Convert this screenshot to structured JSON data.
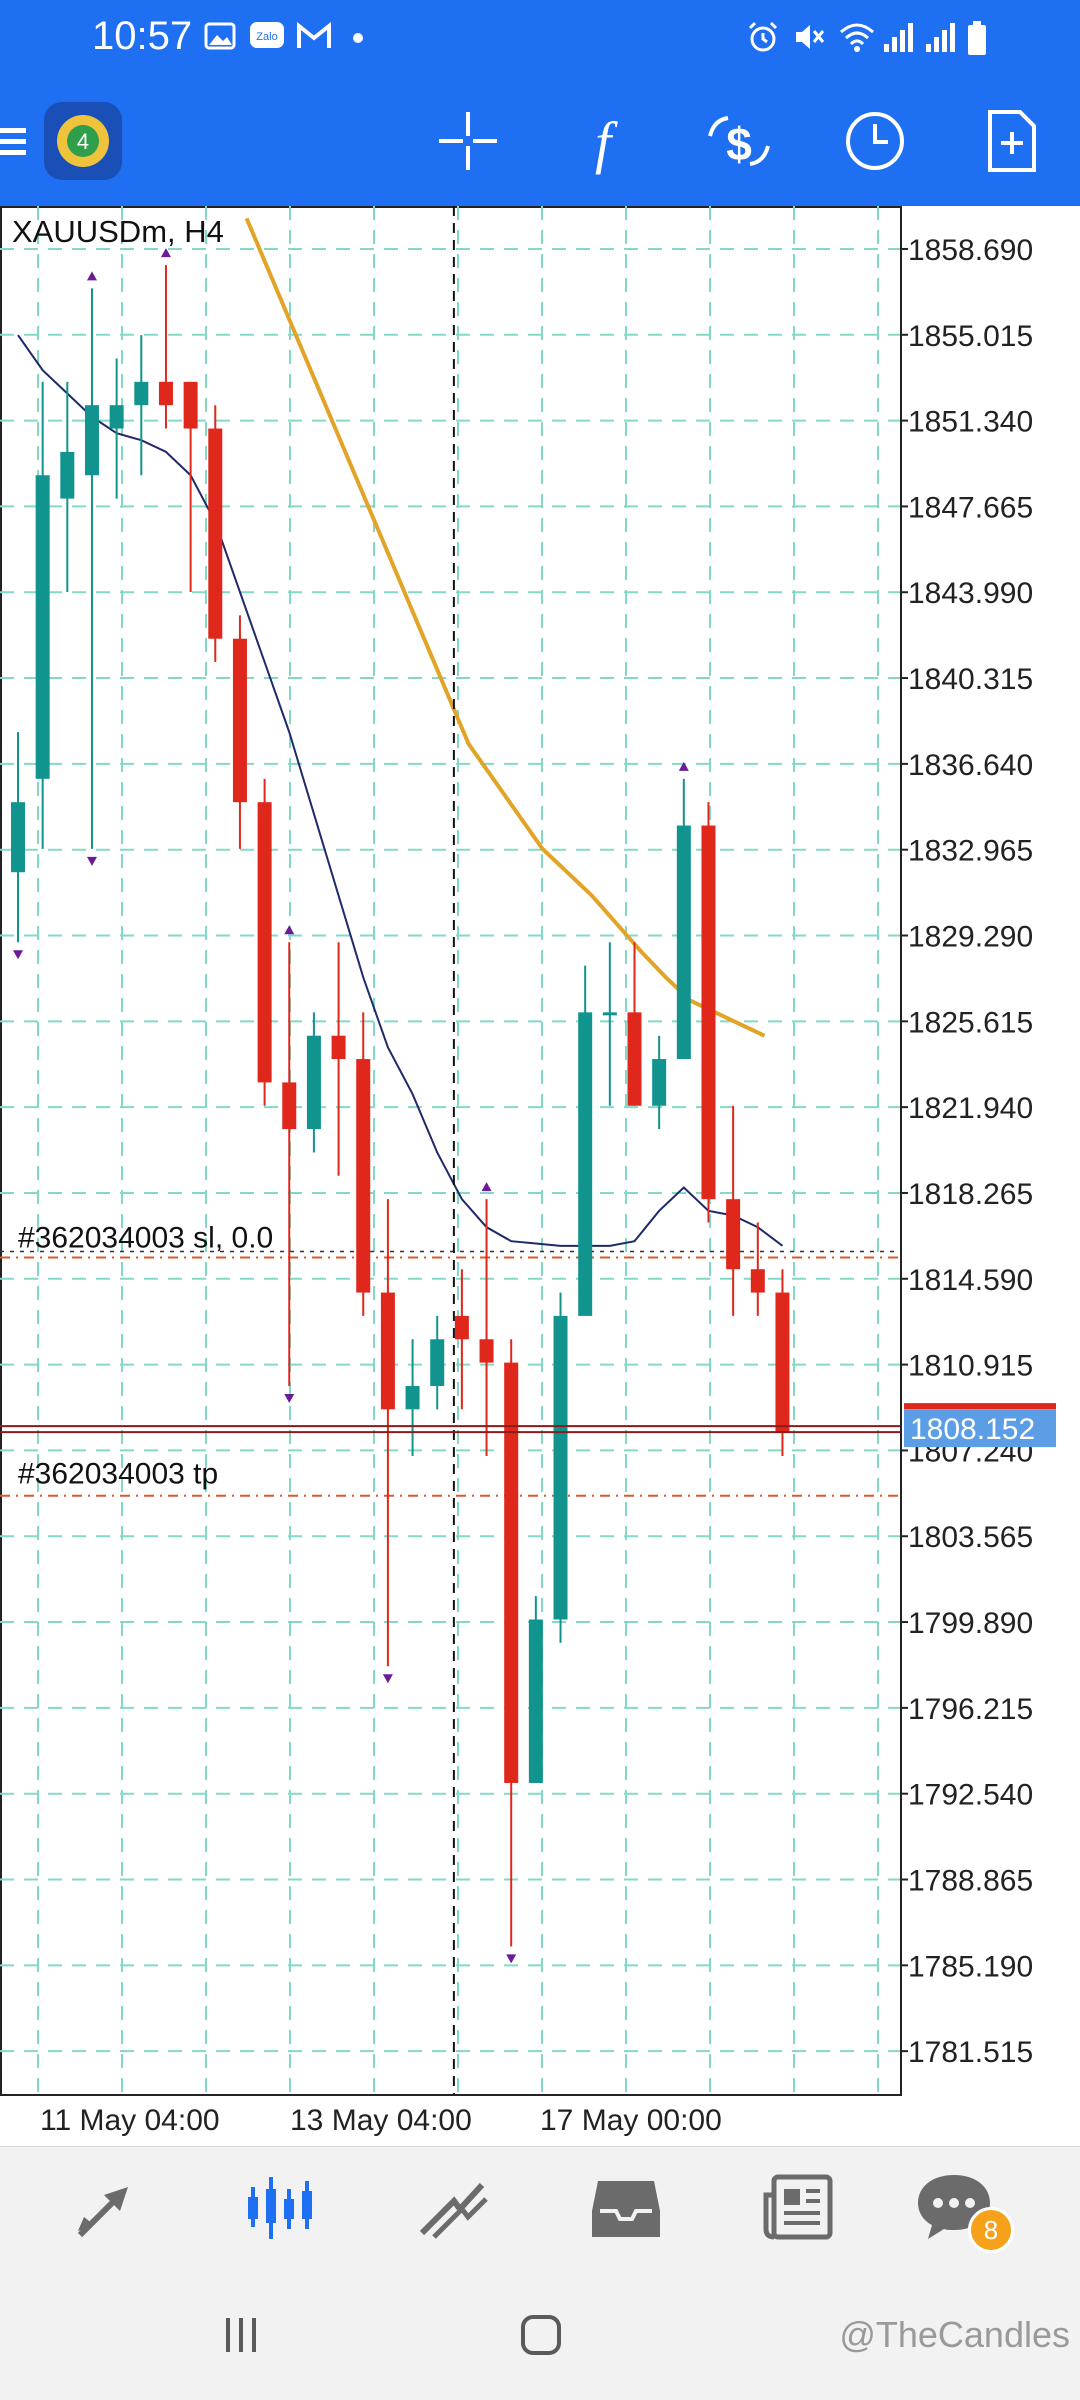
{
  "status_bar": {
    "time": "10:57",
    "left_icons": [
      "gallery-icon",
      "zalo-icon",
      "gmail-icon",
      "dot-icon"
    ],
    "right_icons": [
      "alarm-icon",
      "mute-icon",
      "wifi-icon",
      "signal-icon",
      "signal2-icon",
      "battery-icon"
    ]
  },
  "toolbar": {
    "app": "MetaTrader 4",
    "icons": [
      "menu-icon",
      "app-logo-icon",
      "crosshair-icon",
      "indicators-icon",
      "symbols-icon",
      "timeframe-clock-icon",
      "new-order-icon"
    ]
  },
  "chart_data": {
    "type": "candlestick",
    "title": "XAUUSDm, H4",
    "current_price": "1808.152",
    "yticks": [
      "1858.690",
      "1855.015",
      "1851.340",
      "1847.665",
      "1843.990",
      "1840.315",
      "1836.640",
      "1832.965",
      "1829.290",
      "1825.615",
      "1821.940",
      "1818.265",
      "1814.590",
      "1810.915",
      "1807.240",
      "1803.565",
      "1799.890",
      "1796.215",
      "1792.540",
      "1788.865",
      "1785.190",
      "1781.515"
    ],
    "xticks": [
      "11 May 04:00",
      "13 May 04:00",
      "17 May 00:00"
    ],
    "ylim": [
      1779.68,
      1860.53
    ],
    "sl_label": "#362034003 sl, 0.0",
    "sl_price": 1815.5,
    "tp_label": "#362034003 tp",
    "tp_price": 1805.3,
    "candles": [
      {
        "o": 1832.0,
        "h": 1838.0,
        "l": 1829.0,
        "c": 1835.0
      },
      {
        "o": 1836.0,
        "h": 1853.0,
        "l": 1833.0,
        "c": 1849.0
      },
      {
        "o": 1848.0,
        "h": 1853.0,
        "l": 1844.0,
        "c": 1850.0
      },
      {
        "o": 1849.0,
        "h": 1857.0,
        "l": 1833.0,
        "c": 1852.0
      },
      {
        "o": 1851.0,
        "h": 1854.0,
        "l": 1848.0,
        "c": 1852.0
      },
      {
        "o": 1852.0,
        "h": 1855.0,
        "l": 1849.0,
        "c": 1853.0
      },
      {
        "o": 1853.0,
        "h": 1858.0,
        "l": 1851.0,
        "c": 1852.0
      },
      {
        "o": 1853.0,
        "h": 1853.0,
        "l": 1844.0,
        "c": 1851.0
      },
      {
        "o": 1851.0,
        "h": 1852.0,
        "l": 1841.0,
        "c": 1842.0
      },
      {
        "o": 1842.0,
        "h": 1843.0,
        "l": 1833.0,
        "c": 1835.0
      },
      {
        "o": 1835.0,
        "h": 1836.0,
        "l": 1822.0,
        "c": 1823.0
      },
      {
        "o": 1823.0,
        "h": 1829.0,
        "l": 1810.0,
        "c": 1821.0
      },
      {
        "o": 1821.0,
        "h": 1826.0,
        "l": 1820.0,
        "c": 1825.0
      },
      {
        "o": 1825.0,
        "h": 1829.0,
        "l": 1819.0,
        "c": 1824.0
      },
      {
        "o": 1824.0,
        "h": 1826.0,
        "l": 1813.0,
        "c": 1814.0
      },
      {
        "o": 1814.0,
        "h": 1818.0,
        "l": 1798.0,
        "c": 1809.0
      },
      {
        "o": 1809.0,
        "h": 1812.0,
        "l": 1807.0,
        "c": 1810.0
      },
      {
        "o": 1810.0,
        "h": 1813.0,
        "l": 1809.0,
        "c": 1812.0
      },
      {
        "o": 1813.0,
        "h": 1815.0,
        "l": 1809.0,
        "c": 1812.0
      },
      {
        "o": 1812.0,
        "h": 1818.0,
        "l": 1807.0,
        "c": 1811.0
      },
      {
        "o": 1811.0,
        "h": 1812.0,
        "l": 1786.0,
        "c": 1793.0
      },
      {
        "o": 1793.0,
        "h": 1801.0,
        "l": 1793.0,
        "c": 1800.0
      },
      {
        "o": 1800.0,
        "h": 1814.0,
        "l": 1799.0,
        "c": 1813.0
      },
      {
        "o": 1813.0,
        "h": 1828.0,
        "l": 1813.0,
        "c": 1826.0
      },
      {
        "o": 1826.0,
        "h": 1829.0,
        "l": 1822.0,
        "c": 1826.0
      },
      {
        "o": 1826.0,
        "h": 1829.0,
        "l": 1822.0,
        "c": 1822.0
      },
      {
        "o": 1822.0,
        "h": 1825.0,
        "l": 1821.0,
        "c": 1824.0
      },
      {
        "o": 1824.0,
        "h": 1836.0,
        "l": 1824.0,
        "c": 1834.0
      },
      {
        "o": 1834.0,
        "h": 1835.0,
        "l": 1817.0,
        "c": 1818.0
      },
      {
        "o": 1818.0,
        "h": 1822.0,
        "l": 1813.0,
        "c": 1815.0
      },
      {
        "o": 1815.0,
        "h": 1817.0,
        "l": 1813.0,
        "c": 1814.0
      },
      {
        "o": 1814.0,
        "h": 1815.0,
        "l": 1807.0,
        "c": 1808.0
      }
    ],
    "ma_fast": [
      1855.0,
      1853.5,
      1852.5,
      1851.5,
      1850.8,
      1850.5,
      1850.0,
      1849.0,
      1847.0,
      1844.0,
      1841.0,
      1838.0,
      1834.5,
      1831.0,
      1827.5,
      1824.5,
      1822.5,
      1820.0,
      1818.0,
      1816.8,
      1816.2,
      1816.1,
      1816.0,
      1816.0,
      1816.0,
      1816.2,
      1817.5,
      1818.5,
      1817.5,
      1817.3,
      1816.8,
      1816.0
    ],
    "ma_slow_start_index": 10,
    "ma_slow": [
      1860.0,
      1857.5,
      1855.0,
      1852.5,
      1850.0,
      1847.5,
      1845.0,
      1842.5,
      1840.0,
      1837.5,
      1836.0,
      1834.5,
      1833.0,
      1832.0,
      1831.0,
      1829.8,
      1828.6,
      1827.5,
      1826.5,
      1826.0,
      1825.5,
      1825.0
    ],
    "crosshair_candle_index": 18,
    "colors": {
      "bull": "#12948e",
      "bear": "#e0271b",
      "grid": "#82d9c8",
      "ma_fast": "#1f2a6b",
      "ma_slow": "#e2a427",
      "price_box": "#5b9ee6",
      "sl": "#d95a2b",
      "tp": "#d95a2b"
    }
  },
  "bottom_nav": {
    "items": [
      "quotes-icon",
      "chart-icon",
      "trade-icon",
      "history-icon",
      "news-icon",
      "messages-icon"
    ],
    "active": "chart-icon",
    "messages_badge": "8"
  },
  "system_nav": {
    "items": [
      "recents-icon",
      "home-icon"
    ],
    "watermark": "@TheCandles"
  }
}
